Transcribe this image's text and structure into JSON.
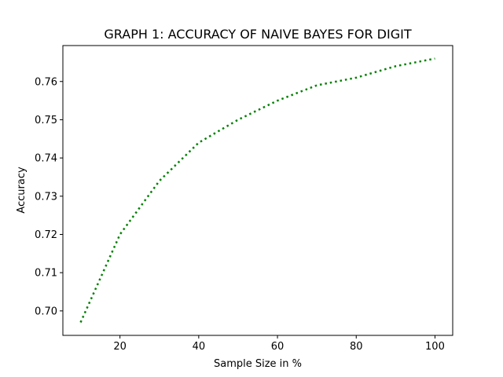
{
  "chart_data": {
    "type": "line",
    "title": "GRAPH 1: ACCURACY OF NAIVE BAYES FOR DIGIT",
    "xlabel": "Sample Size in %",
    "ylabel": "Accuracy",
    "xlim": [
      5.5,
      104.5
    ],
    "ylim": [
      0.6936,
      0.7694
    ],
    "xticks": [
      20,
      40,
      60,
      80,
      100
    ],
    "yticks": [
      0.7,
      0.71,
      0.72,
      0.73,
      0.74,
      0.75,
      0.76
    ],
    "ytick_labels": [
      "0.70",
      "0.71",
      "0.72",
      "0.73",
      "0.74",
      "0.75",
      "0.76"
    ],
    "grid": false,
    "series": [
      {
        "color": "#008000",
        "linestyle": "dotted",
        "x": [
          10,
          20,
          30,
          40,
          50,
          60,
          70,
          80,
          90,
          100
        ],
        "y": [
          0.697,
          0.72,
          0.734,
          0.744,
          0.75,
          0.755,
          0.759,
          0.761,
          0.764,
          0.766
        ]
      }
    ]
  }
}
